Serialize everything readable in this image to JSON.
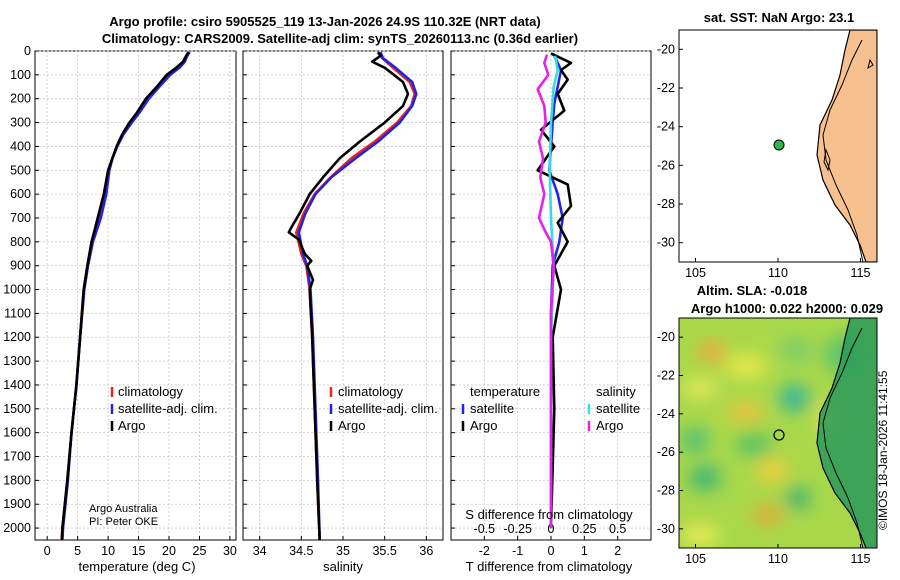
{
  "header": {
    "title_line1": "Argo profile: csiro 5905525_119 13-Jan-2026 24.9S 110.32E (NRT data)",
    "title_line2": "Climatology: CARS2009. Satellite-adj clim: synTS_20260113.nc (0.36d earlier)"
  },
  "watermark": "©IMOS 18-Jan-2026 11:41:55",
  "colors": {
    "climatology": "#e8231a",
    "satellite": "#2323e6",
    "argo": "#000000",
    "sat_salinity": "#38d9e8",
    "argo_salinity": "#e620e6",
    "land": "#f7c08f"
  },
  "chart_data": [
    {
      "id": "temperature",
      "type": "line",
      "title": "",
      "xlabel": "temperature (deg C)",
      "ylabel": "",
      "xlim": [
        -2,
        31
      ],
      "ylim": [
        2050,
        0
      ],
      "xticks": [
        0,
        5,
        10,
        15,
        20,
        25,
        30
      ],
      "yticks": [
        0,
        100,
        200,
        300,
        400,
        500,
        600,
        700,
        800,
        900,
        1000,
        1100,
        1200,
        1300,
        1400,
        1500,
        1600,
        1700,
        1800,
        1900,
        2000
      ],
      "legend": [
        "climatology",
        "satellite-adj. clim.",
        "Argo"
      ],
      "footer": [
        "Argo Australia",
        "PI: Peter OKE"
      ],
      "series": [
        {
          "name": "climatology",
          "color": "#e8231a",
          "points": [
            [
              23.2,
              5
            ],
            [
              23.0,
              20
            ],
            [
              22.5,
              45
            ],
            [
              21.5,
              70
            ],
            [
              20.0,
              100
            ],
            [
              18.3,
              150
            ],
            [
              16.5,
              200
            ],
            [
              15.0,
              260
            ],
            [
              13.8,
              300
            ],
            [
              12.5,
              350
            ],
            [
              11.5,
              400
            ],
            [
              10.7,
              450
            ],
            [
              10.2,
              500
            ],
            [
              9.6,
              600
            ],
            [
              8.5,
              700
            ],
            [
              7.3,
              800
            ],
            [
              6.6,
              900
            ],
            [
              6.0,
              1000
            ],
            [
              5.4,
              1200
            ],
            [
              4.8,
              1400
            ],
            [
              4.0,
              1600
            ],
            [
              3.3,
              1800
            ],
            [
              2.5,
              2000
            ],
            [
              2.4,
              2050
            ]
          ]
        },
        {
          "name": "satellite-adj. clim.",
          "color": "#2323e6",
          "points": [
            [
              23.4,
              5
            ],
            [
              23.0,
              20
            ],
            [
              22.6,
              45
            ],
            [
              21.7,
              70
            ],
            [
              20.2,
              100
            ],
            [
              18.4,
              150
            ],
            [
              16.7,
              200
            ],
            [
              15.1,
              260
            ],
            [
              13.9,
              300
            ],
            [
              12.5,
              350
            ],
            [
              11.5,
              400
            ],
            [
              10.7,
              450
            ],
            [
              10.2,
              500
            ],
            [
              9.7,
              600
            ],
            [
              8.8,
              700
            ],
            [
              7.5,
              800
            ],
            [
              6.7,
              900
            ],
            [
              6.1,
              1000
            ],
            [
              5.4,
              1200
            ],
            [
              4.8,
              1400
            ],
            [
              4.0,
              1600
            ],
            [
              3.4,
              1800
            ],
            [
              2.6,
              2000
            ],
            [
              2.5,
              2050
            ]
          ]
        },
        {
          "name": "Argo",
          "color": "#000000",
          "points": [
            [
              23.2,
              5
            ],
            [
              22.8,
              20
            ],
            [
              22.3,
              45
            ],
            [
              21.2,
              70
            ],
            [
              19.6,
              100
            ],
            [
              18.0,
              150
            ],
            [
              16.2,
              200
            ],
            [
              14.7,
              260
            ],
            [
              13.5,
              300
            ],
            [
              12.3,
              350
            ],
            [
              11.4,
              400
            ],
            [
              10.7,
              450
            ],
            [
              10.0,
              500
            ],
            [
              9.3,
              600
            ],
            [
              8.3,
              700
            ],
            [
              7.3,
              800
            ],
            [
              6.6,
              900
            ],
            [
              6.0,
              1000
            ],
            [
              5.4,
              1200
            ],
            [
              4.8,
              1400
            ],
            [
              4.0,
              1600
            ],
            [
              3.3,
              1800
            ],
            [
              2.5,
              2000
            ],
            [
              2.4,
              2050
            ]
          ]
        }
      ]
    },
    {
      "id": "salinity",
      "type": "line",
      "xlabel": "salinity",
      "xlim": [
        33.8,
        36.2
      ],
      "ylim": [
        2050,
        0
      ],
      "xticks": [
        34,
        34.5,
        35,
        35.5,
        36
      ],
      "legend": [
        "climatology",
        "satellite-adj. clim.",
        "Argo"
      ],
      "series": [
        {
          "name": "climatology",
          "color": "#e8231a",
          "points": [
            [
              35.45,
              5
            ],
            [
              35.47,
              30
            ],
            [
              35.6,
              70
            ],
            [
              35.8,
              130
            ],
            [
              35.86,
              180
            ],
            [
              35.82,
              230
            ],
            [
              35.65,
              300
            ],
            [
              35.38,
              380
            ],
            [
              35.1,
              450
            ],
            [
              34.85,
              530
            ],
            [
              34.66,
              600
            ],
            [
              34.53,
              680
            ],
            [
              34.44,
              760
            ],
            [
              34.5,
              850
            ],
            [
              34.56,
              900
            ],
            [
              34.6,
              1000
            ],
            [
              34.63,
              1200
            ],
            [
              34.66,
              1500
            ],
            [
              34.69,
              1800
            ],
            [
              34.72,
              2050
            ]
          ]
        },
        {
          "name": "satellite-adj. clim.",
          "color": "#2323e6",
          "points": [
            [
              35.45,
              5
            ],
            [
              35.48,
              30
            ],
            [
              35.63,
              70
            ],
            [
              35.83,
              130
            ],
            [
              35.88,
              180
            ],
            [
              35.83,
              230
            ],
            [
              35.68,
              300
            ],
            [
              35.42,
              380
            ],
            [
              35.15,
              450
            ],
            [
              34.86,
              530
            ],
            [
              34.67,
              600
            ],
            [
              34.55,
              680
            ],
            [
              34.47,
              760
            ],
            [
              34.52,
              850
            ],
            [
              34.57,
              900
            ],
            [
              34.61,
              1000
            ],
            [
              34.64,
              1200
            ],
            [
              34.67,
              1500
            ],
            [
              34.7,
              1800
            ],
            [
              34.72,
              2050
            ]
          ]
        },
        {
          "name": "Argo",
          "color": "#000000",
          "points": [
            [
              35.42,
              5
            ],
            [
              35.45,
              20
            ],
            [
              35.35,
              45
            ],
            [
              35.5,
              70
            ],
            [
              35.72,
              130
            ],
            [
              35.78,
              180
            ],
            [
              35.72,
              230
            ],
            [
              35.5,
              300
            ],
            [
              35.2,
              380
            ],
            [
              34.96,
              450
            ],
            [
              34.76,
              530
            ],
            [
              34.6,
              600
            ],
            [
              34.48,
              680
            ],
            [
              34.38,
              740
            ],
            [
              34.35,
              760
            ],
            [
              34.47,
              790
            ],
            [
              34.54,
              850
            ],
            [
              34.62,
              880
            ],
            [
              34.57,
              900
            ],
            [
              34.64,
              960
            ],
            [
              34.6,
              1000
            ],
            [
              34.63,
              1200
            ],
            [
              34.66,
              1500
            ],
            [
              34.69,
              1800
            ],
            [
              34.72,
              2050
            ]
          ]
        }
      ]
    },
    {
      "id": "difference",
      "type": "line",
      "xlabel": "T difference from climatology",
      "top_label": "S difference from climatology",
      "xlim": [
        -3,
        3
      ],
      "ylim": [
        2050,
        0
      ],
      "xticks": [
        -2,
        -1,
        0,
        1,
        2
      ],
      "top_ticks": [
        "-0.5",
        "-0.25",
        "0",
        "0.25",
        "0.5"
      ],
      "legend_temperature_title": "temperature",
      "legend_salinity_title": "salinity",
      "legend_temperature": [
        "satellite",
        "Argo"
      ],
      "legend_salinity": [
        "satellite",
        "Argo"
      ],
      "series": [
        {
          "name": "T satellite",
          "color": "#2323e6",
          "points": [
            [
              0.1,
              20
            ],
            [
              0.3,
              80
            ],
            [
              0.2,
              150
            ],
            [
              0.1,
              220
            ],
            [
              0.05,
              300
            ],
            [
              0.0,
              400
            ],
            [
              -0.05,
              500
            ],
            [
              0.2,
              600
            ],
            [
              0.35,
              700
            ],
            [
              0.25,
              800
            ],
            [
              0.05,
              900
            ],
            [
              0.0,
              1100
            ],
            [
              0.0,
              1500
            ],
            [
              0.0,
              2000
            ]
          ]
        },
        {
          "name": "T Argo",
          "color": "#000000",
          "points": [
            [
              0.0,
              10
            ],
            [
              0.6,
              50
            ],
            [
              0.3,
              80
            ],
            [
              0.5,
              120
            ],
            [
              0.2,
              180
            ],
            [
              0.4,
              250
            ],
            [
              -0.3,
              330
            ],
            [
              0.1,
              400
            ],
            [
              -0.4,
              500
            ],
            [
              0.5,
              560
            ],
            [
              0.6,
              650
            ],
            [
              0.2,
              720
            ],
            [
              0.5,
              800
            ],
            [
              0.1,
              900
            ],
            [
              0.3,
              1000
            ],
            [
              0.05,
              1200
            ],
            [
              0.1,
              1500
            ],
            [
              0.0,
              2000
            ]
          ]
        },
        {
          "name": "S satellite",
          "color": "#38d9e8",
          "points": [
            [
              0.03,
              20
            ],
            [
              0.05,
              80
            ],
            [
              0.02,
              150
            ],
            [
              0.0,
              300
            ],
            [
              -0.01,
              500
            ],
            [
              0.0,
              700
            ],
            [
              0.02,
              900
            ],
            [
              0.0,
              1200
            ],
            [
              0.0,
              2000
            ]
          ]
        },
        {
          "name": "S Argo",
          "color": "#e620e6",
          "points": [
            [
              -0.03,
              15
            ],
            [
              -0.05,
              50
            ],
            [
              -0.02,
              100
            ],
            [
              -0.1,
              160
            ],
            [
              -0.05,
              230
            ],
            [
              -0.04,
              300
            ],
            [
              -0.09,
              380
            ],
            [
              -0.06,
              450
            ],
            [
              -0.08,
              530
            ],
            [
              -0.05,
              600
            ],
            [
              -0.09,
              700
            ],
            [
              -0.04,
              760
            ],
            [
              0.0,
              800
            ],
            [
              0.02,
              900
            ],
            [
              0.0,
              1100
            ],
            [
              0.0,
              2000
            ]
          ]
        }
      ]
    },
    {
      "id": "sst_map",
      "type": "map",
      "title": "sat. SST: NaN Argo: 23.1",
      "xticks": [
        105,
        110,
        115
      ],
      "yticks": [
        -20,
        -22,
        -24,
        -26,
        -28,
        -30
      ],
      "xlim": [
        104,
        116
      ],
      "ylim": [
        -31,
        -19
      ],
      "argo_position": [
        110.32,
        -24.9
      ]
    },
    {
      "id": "sla_map",
      "type": "heatmap",
      "title_line1": "Altim. SLA: -0.018",
      "title_line2": "Argo h1000: 0.022 h2000: 0.029",
      "xticks": [
        105,
        110,
        115
      ],
      "yticks": [
        -20,
        -22,
        -24,
        -26,
        -28,
        -30
      ],
      "xlim": [
        104,
        116
      ],
      "ylim": [
        -31,
        -19
      ],
      "argo_position": [
        110.32,
        -24.9
      ]
    }
  ]
}
